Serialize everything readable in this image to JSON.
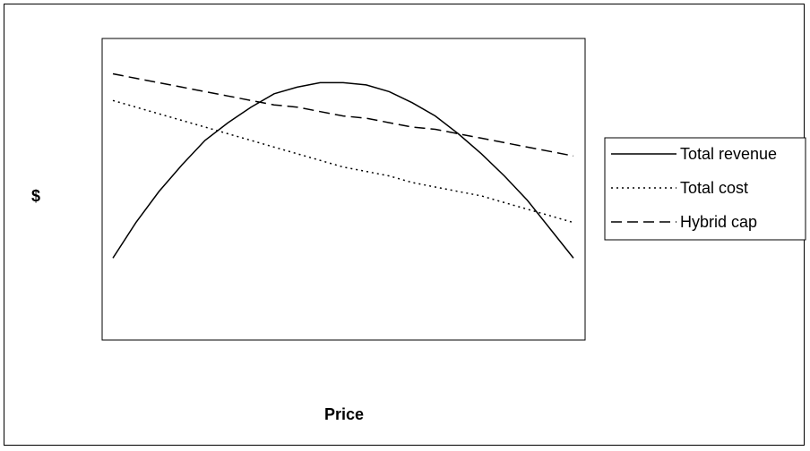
{
  "chart_data": {
    "type": "line",
    "title": "",
    "xlabel": "Price",
    "ylabel": "$",
    "xlim": [
      0,
      100
    ],
    "ylim": [
      0,
      100
    ],
    "grid": false,
    "legend_position": "right",
    "x": [
      0,
      5,
      10,
      15,
      20,
      25,
      30,
      35,
      40,
      45,
      50,
      55,
      60,
      65,
      70,
      75,
      80,
      85,
      90,
      95,
      100
    ],
    "series": [
      {
        "name": "Total revenue",
        "style": "solid",
        "color": "#000000",
        "values": [
          18,
          34,
          48,
          60,
          71,
          79,
          86,
          92,
          95,
          97,
          97,
          96,
          93,
          88,
          82,
          74,
          65,
          55,
          44,
          31,
          18
        ]
      },
      {
        "name": "Total cost",
        "style": "dotted",
        "color": "#000000",
        "values": [
          89,
          86,
          83,
          80,
          77,
          74,
          71,
          68,
          65,
          62,
          59,
          57,
          55,
          52,
          50,
          48,
          46,
          43,
          40,
          37,
          34
        ]
      },
      {
        "name": "Hybrid cap",
        "style": "dashed",
        "color": "#000000",
        "values": [
          101,
          99,
          97,
          95,
          93,
          91,
          89,
          87,
          86,
          84,
          82,
          81,
          79,
          77,
          76,
          74,
          72,
          70,
          68,
          66,
          64
        ]
      }
    ]
  }
}
